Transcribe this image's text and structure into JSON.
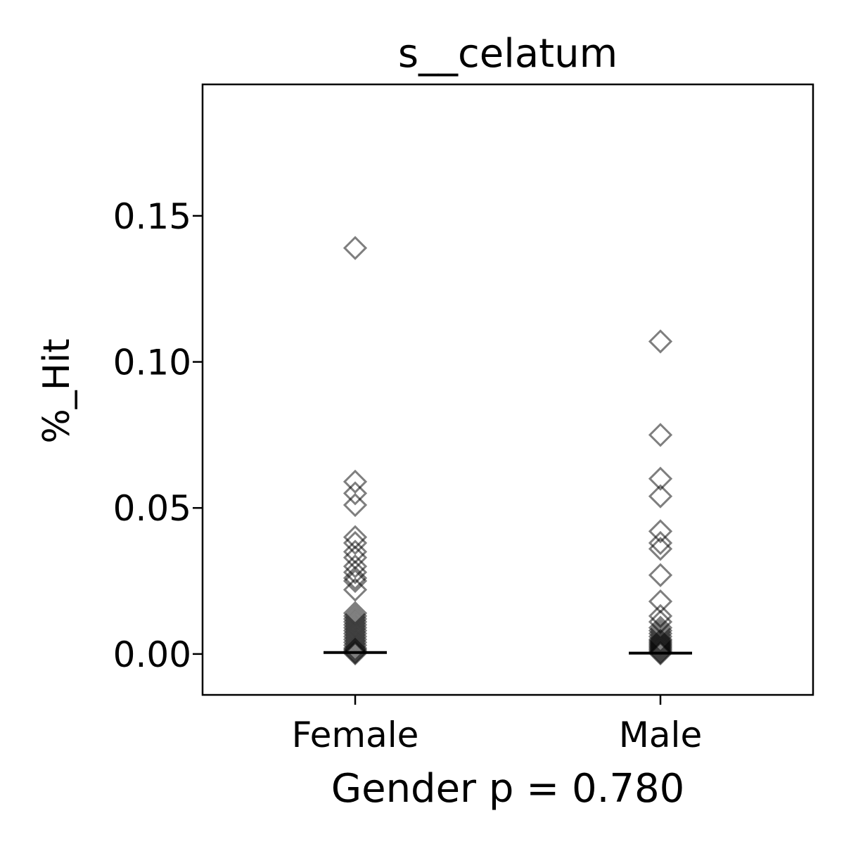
{
  "chart_data": {
    "type": "scatter",
    "title": "s__celatum",
    "xlabel": "Gender p = 0.780",
    "ylabel": "%_Hit",
    "categories": [
      "Female",
      "Male"
    ],
    "ylim": [
      -0.014,
      0.195
    ],
    "yticks": [
      0.0,
      0.05,
      0.1,
      0.15
    ],
    "ytick_labels": [
      "0.00",
      "0.05",
      "0.10",
      "0.15"
    ],
    "grid": false,
    "marker": "open diamond",
    "marker_color": "#000000",
    "series": [
      {
        "category": "Female",
        "median": 0.0005,
        "values": [
          0.139,
          0.059,
          0.055,
          0.051,
          0.04,
          0.038,
          0.035,
          0.033,
          0.03,
          0.028,
          0.026,
          0.025,
          0.022,
          0.014,
          0.013,
          0.012,
          0.011,
          0.01,
          0.009,
          0.008,
          0.007,
          0.006,
          0.005,
          0.004,
          0.003,
          0.002,
          0.0015,
          0.001,
          0.0005,
          0.0002
        ]
      },
      {
        "category": "Male",
        "median": 0.0003,
        "values": [
          0.107,
          0.075,
          0.06,
          0.054,
          0.042,
          0.038,
          0.036,
          0.027,
          0.018,
          0.013,
          0.011,
          0.009,
          0.008,
          0.007,
          0.006,
          0.005,
          0.0045,
          0.004,
          0.0035,
          0.003,
          0.0025,
          0.002,
          0.0015,
          0.001,
          0.0005,
          0.0002
        ]
      }
    ]
  }
}
